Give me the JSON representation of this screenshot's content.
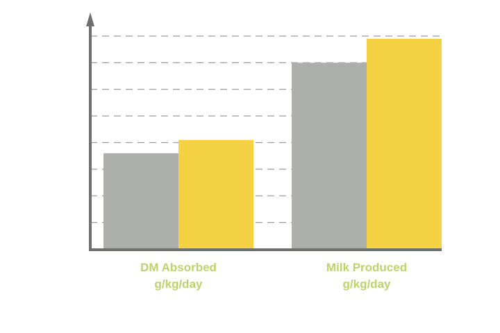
{
  "chart_data": {
    "type": "bar",
    "title": "",
    "xlabel": "",
    "ylabel": "",
    "categories": [
      [
        "DM Absorbed",
        "g/kg/day"
      ],
      [
        "Milk Produced",
        "g/kg/day"
      ]
    ],
    "series": [
      {
        "color": "#adafad",
        "values": [
          36,
          70
        ]
      },
      {
        "color": "#f5d244",
        "values": [
          41,
          79
        ]
      }
    ],
    "ylim": [
      0,
      80
    ],
    "yticks": [
      10,
      20,
      30,
      40,
      50,
      60,
      70,
      80
    ],
    "grid": "dashed horizontal",
    "legend": "none",
    "axis_color": "#6e706e",
    "label_color": "#bcd36a"
  }
}
